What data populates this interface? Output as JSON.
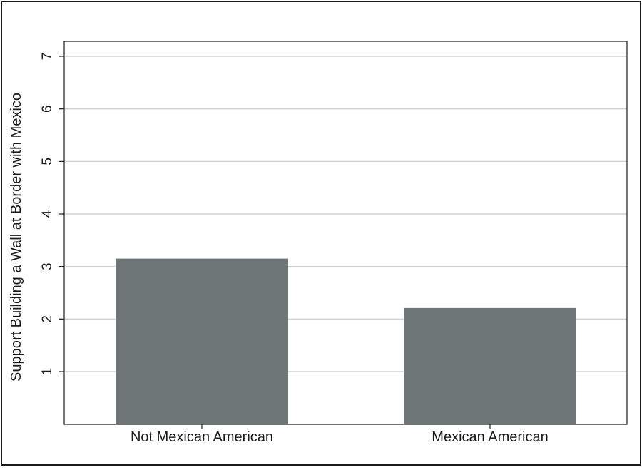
{
  "chart_data": {
    "type": "bar",
    "categories": [
      "Not Mexican American",
      "Mexican American"
    ],
    "values": [
      3.15,
      2.21
    ],
    "title": "",
    "xlabel": "",
    "ylabel": "Support Building a Wall at Border with Mexico",
    "ylim": [
      0,
      7
    ],
    "yticks": [
      1,
      2,
      3,
      4,
      5,
      6,
      7
    ],
    "grid": "horizontal",
    "legend": "none"
  },
  "colors": {
    "bar": "#6e7577",
    "grid": "#d2d2d2",
    "axis": "#1a1a1a",
    "frame": "#1a1a1a",
    "background": "#ffffff"
  }
}
